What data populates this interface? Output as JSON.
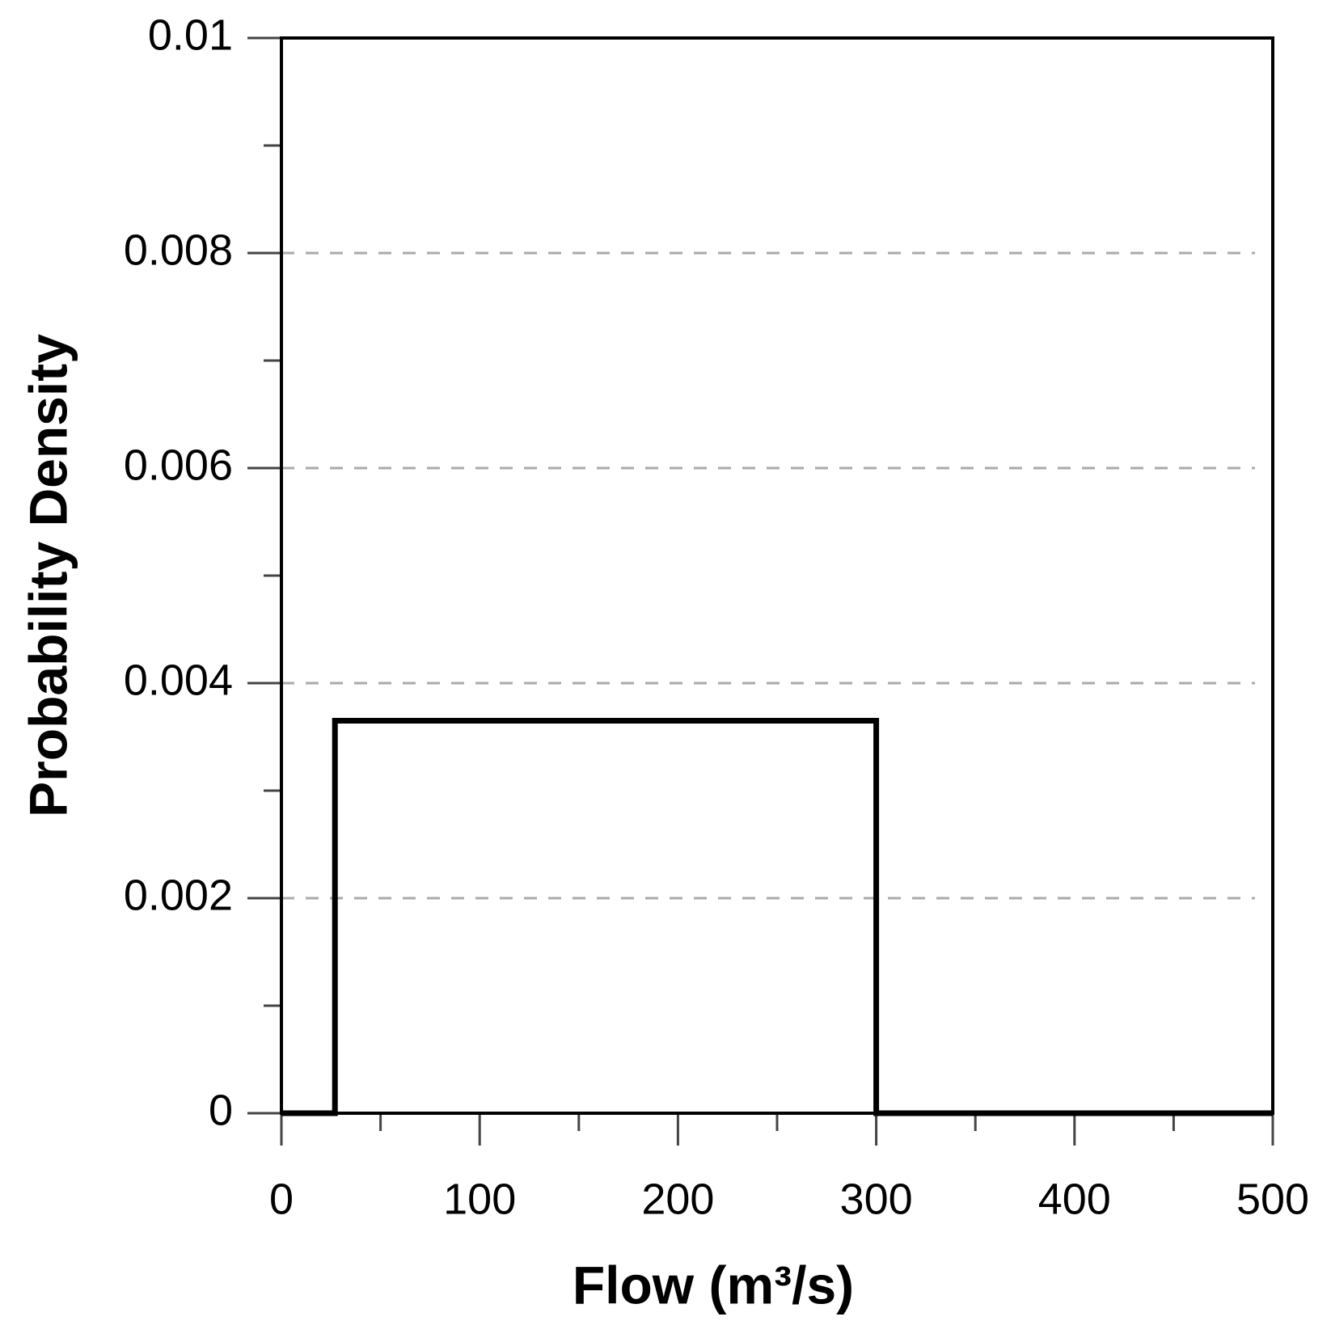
{
  "chart_data": {
    "type": "line",
    "x_label": "Flow (m³/s)",
    "y_label": "Probability Density",
    "x": [
      0,
      27,
      27,
      300,
      300,
      500
    ],
    "values": [
      0,
      0,
      0.00365,
      0.00365,
      0,
      0
    ],
    "color": "#000000",
    "xlim": [
      0,
      500
    ],
    "xticks": [
      0,
      100,
      200,
      300,
      400,
      500
    ],
    "xminorticks": [
      50,
      150,
      250,
      350,
      450
    ],
    "ylim": [
      0,
      0.01
    ],
    "yticks": [
      0,
      0.002,
      0.004,
      0.006,
      0.008,
      0.01
    ],
    "yminorticks": [
      0.001,
      0.003,
      0.005,
      0.007,
      0.009
    ],
    "grid": true
  }
}
